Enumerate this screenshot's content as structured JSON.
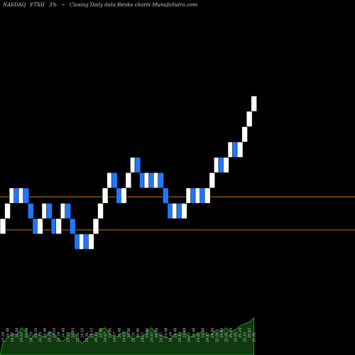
{
  "header": {
    "exchange": "NASDAQ",
    "symbol": "FTXH",
    "change": "3%",
    "arrow": "~",
    "subtitle": "Closing Daily data Renko charts MunafaSutra.com"
  },
  "chart_data": {
    "type": "renko",
    "title": "NASDAQ FTXH 3% ~ Closing Daily data Renko charts MunafaSutra.com",
    "ylim": [
      22.6,
      27.0
    ],
    "grid": false,
    "brick_size": 0.19,
    "reference_lines": [
      24.56,
      24.15
    ],
    "bricks": [
      {
        "dir": "up",
        "close": 24.29
      },
      {
        "dir": "up",
        "close": 24.48
      },
      {
        "dir": "up",
        "close": 24.67
      },
      {
        "dir": "down",
        "close": 24.48
      },
      {
        "dir": "up",
        "close": 24.67
      },
      {
        "dir": "down",
        "close": 24.48
      },
      {
        "dir": "down",
        "close": 24.29
      },
      {
        "dir": "down",
        "close": 24.1
      },
      {
        "dir": "up",
        "close": 24.29
      },
      {
        "dir": "up",
        "close": 24.48
      },
      {
        "dir": "down",
        "close": 24.29
      },
      {
        "dir": "down",
        "close": 24.1
      },
      {
        "dir": "up",
        "close": 24.29
      },
      {
        "dir": "up",
        "close": 24.48
      },
      {
        "dir": "down",
        "close": 24.29
      },
      {
        "dir": "down",
        "close": 24.1
      },
      {
        "dir": "down",
        "close": 23.91
      },
      {
        "dir": "up",
        "close": 24.1
      },
      {
        "dir": "down",
        "close": 23.91
      },
      {
        "dir": "up",
        "close": 24.1
      },
      {
        "dir": "up",
        "close": 24.29
      },
      {
        "dir": "up",
        "close": 24.48
      },
      {
        "dir": "up",
        "close": 24.67
      },
      {
        "dir": "up",
        "close": 24.86
      },
      {
        "dir": "down",
        "close": 24.67
      },
      {
        "dir": "down",
        "close": 24.48
      },
      {
        "dir": "up",
        "close": 24.67
      },
      {
        "dir": "up",
        "close": 24.86
      },
      {
        "dir": "up",
        "close": 25.05
      },
      {
        "dir": "down",
        "close": 24.86
      },
      {
        "dir": "down",
        "close": 24.67
      },
      {
        "dir": "up",
        "close": 24.86
      },
      {
        "dir": "down",
        "close": 24.67
      },
      {
        "dir": "up",
        "close": 24.86
      },
      {
        "dir": "down",
        "close": 24.67
      },
      {
        "dir": "down",
        "close": 24.48
      },
      {
        "dir": "down",
        "close": 24.29
      },
      {
        "dir": "up",
        "close": 24.48
      },
      {
        "dir": "down",
        "close": 24.29
      },
      {
        "dir": "up",
        "close": 24.48
      },
      {
        "dir": "up",
        "close": 24.67
      },
      {
        "dir": "down",
        "close": 24.48
      },
      {
        "dir": "up",
        "close": 24.67
      },
      {
        "dir": "down",
        "close": 24.48
      },
      {
        "dir": "up",
        "close": 24.67
      },
      {
        "dir": "up",
        "close": 24.86
      },
      {
        "dir": "up",
        "close": 25.05
      },
      {
        "dir": "down",
        "close": 24.86
      },
      {
        "dir": "up",
        "close": 25.05
      },
      {
        "dir": "up",
        "close": 25.24
      },
      {
        "dir": "down",
        "close": 25.05
      },
      {
        "dir": "up",
        "close": 25.24
      },
      {
        "dir": "up",
        "close": 25.43
      },
      {
        "dir": "up",
        "close": 25.62
      },
      {
        "dir": "up",
        "close": 25.81
      }
    ],
    "volume": [
      0.3,
      0.45,
      0.55,
      0.5,
      0.7,
      0.6,
      0.4,
      0.55,
      0.5,
      0.45,
      0.6,
      0.55,
      0.4,
      0.35,
      0.5,
      0.6,
      0.45,
      0.3,
      0.4,
      0.55,
      0.5,
      0.65,
      0.7,
      0.55,
      0.45,
      0.5,
      0.6,
      0.55,
      0.4,
      0.5,
      0.45,
      0.6,
      0.7,
      0.55,
      0.5,
      0.45,
      0.4,
      0.55,
      0.5,
      0.6,
      0.45,
      0.5,
      0.55,
      0.6,
      0.5,
      0.55,
      0.65,
      0.6,
      0.7,
      0.6,
      0.65,
      0.75,
      0.8,
      0.85,
      0.95
    ],
    "tick_labels": [
      "24.29",
      "24.48",
      "24.67",
      "24.48",
      "24.67",
      "24.48",
      "24.29",
      "24.10",
      "24.29",
      "24.48",
      "24.29",
      "24.10",
      "24.29",
      "24.48",
      "24.29",
      "24.10",
      "23.91",
      "24.10",
      "23.91",
      "24.10",
      "24.29",
      "24.48",
      "24.67",
      "24.86",
      "24.67",
      "24.48",
      "24.67",
      "24.86",
      "25.05",
      "24.86",
      "24.67",
      "24.86",
      "24.67",
      "24.86",
      "24.67",
      "24.48",
      "24.29",
      "24.48",
      "24.29",
      "24.48",
      "24.67",
      "24.48",
      "24.67",
      "24.48",
      "24.67",
      "24.86",
      "25.05",
      "24.86",
      "25.05",
      "25.24",
      "25.05",
      "25.24",
      "25.43",
      "25.62",
      "25.81"
    ],
    "colors": {
      "up": "#ffffff",
      "down": "#1e78ff",
      "reference_line": "#c8781e",
      "volume": "#0f3a0f",
      "volume_edge": "#2fa32f",
      "tick_text": "#bbbbbb",
      "background": "#000000"
    }
  }
}
